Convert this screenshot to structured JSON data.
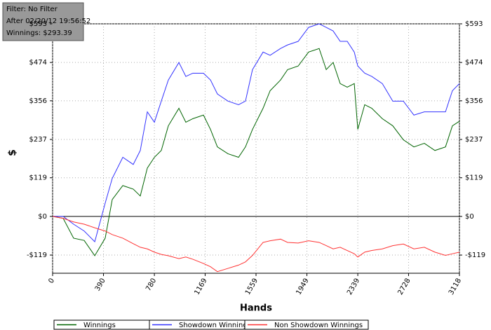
{
  "chart_data": {
    "type": "line",
    "annotations": [
      "Filter: No Filter",
      "After 02/20/12 19:56:52",
      "Winnings: $293.39"
    ],
    "x_label": "Hands",
    "y_label": "$",
    "x": [
      0,
      81,
      161,
      242,
      323,
      403,
      457,
      538,
      618,
      672,
      726,
      780,
      833,
      887,
      968,
      1021,
      1075,
      1156,
      1210,
      1263,
      1344,
      1425,
      1478,
      1532,
      1613,
      1667,
      1747,
      1801,
      1882,
      1962,
      2043,
      2097,
      2150,
      2204,
      2258,
      2312,
      2339,
      2392,
      2446,
      2527,
      2607,
      2688,
      2769,
      2849,
      2930,
      3011,
      3064,
      3118
    ],
    "series": [
      {
        "name": "Winnings",
        "color": "#006400",
        "values": [
          0,
          -6,
          -67,
          -74,
          -121,
          -67,
          52,
          95,
          84,
          63,
          149,
          182,
          203,
          279,
          333,
          290,
          301,
          312,
          268,
          214,
          193,
          182,
          214,
          268,
          333,
          387,
          420,
          452,
          463,
          506,
          517,
          452,
          474,
          409,
          398,
          409,
          268,
          344,
          333,
          301,
          279,
          236,
          214,
          225,
          203,
          214,
          279,
          293
        ]
      },
      {
        "name": "Showdown Winnings",
        "color": "#3333ff",
        "values": [
          0,
          0,
          -24,
          -45,
          -78,
          41,
          117,
          182,
          160,
          203,
          322,
          290,
          355,
          420,
          474,
          431,
          441,
          441,
          420,
          377,
          355,
          344,
          355,
          452,
          506,
          496,
          517,
          528,
          539,
          582,
          593,
          582,
          571,
          539,
          539,
          506,
          463,
          441,
          431,
          409,
          355,
          355,
          312,
          322,
          322,
          322,
          387,
          409
        ]
      },
      {
        "name": "Non Showdown Winnings",
        "color": "#ff3333",
        "values": [
          0,
          -6,
          -17,
          -24,
          -35,
          -45,
          -56,
          -67,
          -84,
          -95,
          -100,
          -110,
          -117,
          -121,
          -130,
          -125,
          -132,
          -145,
          -155,
          -170,
          -160,
          -150,
          -140,
          -120,
          -80,
          -75,
          -70,
          -80,
          -82,
          -75,
          -80,
          -90,
          -100,
          -95,
          -105,
          -115,
          -125,
          -110,
          -105,
          -100,
          -90,
          -85,
          -100,
          -95,
          -110,
          -120,
          -115,
          -110
        ]
      }
    ],
    "xlim": [
      0,
      3118
    ],
    "xticks": [
      0,
      390,
      780,
      1169,
      1559,
      1949,
      2339,
      2728,
      3118
    ],
    "ylim": [
      -175,
      593
    ],
    "yticks": [
      {
        "value": -119,
        "label": "-$119"
      },
      {
        "value": 0,
        "label": "$0"
      },
      {
        "value": 119,
        "label": "$119"
      },
      {
        "value": 237,
        "label": "$237"
      },
      {
        "value": 356,
        "label": "$356"
      },
      {
        "value": 474,
        "label": "$474"
      },
      {
        "value": 593,
        "label": "$593"
      }
    ],
    "grid": true
  }
}
